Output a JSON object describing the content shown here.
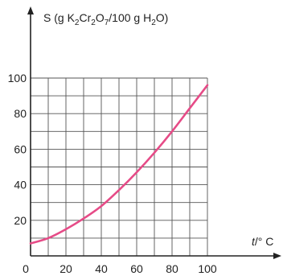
{
  "chart_data": {
    "type": "line",
    "ylabel": {
      "prefix": "S (g K",
      "sub1": "2",
      "mid1": "Cr",
      "sub2": "2",
      "mid2": "O",
      "sub3": "7",
      "mid3": "/100 g H",
      "sub4": "2",
      "suffix": "O)"
    },
    "xlabel": {
      "italic": "t",
      "rest": "/° C"
    },
    "xlim": [
      0,
      100
    ],
    "ylim": [
      0,
      100
    ],
    "x_ticks": [
      0,
      20,
      40,
      60,
      80,
      100
    ],
    "x_tick_labels": [
      "0",
      "20",
      "40",
      "60",
      "80",
      "100"
    ],
    "y_ticks": [
      20,
      40,
      60,
      80,
      100
    ],
    "y_tick_labels": [
      "20",
      "40",
      "60",
      "80",
      "100"
    ],
    "grid": true,
    "series": [
      {
        "color": "#e64b87",
        "x": [
          0,
          10,
          20,
          30,
          40,
          50,
          60,
          70,
          80,
          90,
          100
        ],
        "y": [
          7,
          10,
          15,
          21,
          28,
          37,
          47,
          58,
          70,
          83,
          96
        ]
      }
    ]
  }
}
